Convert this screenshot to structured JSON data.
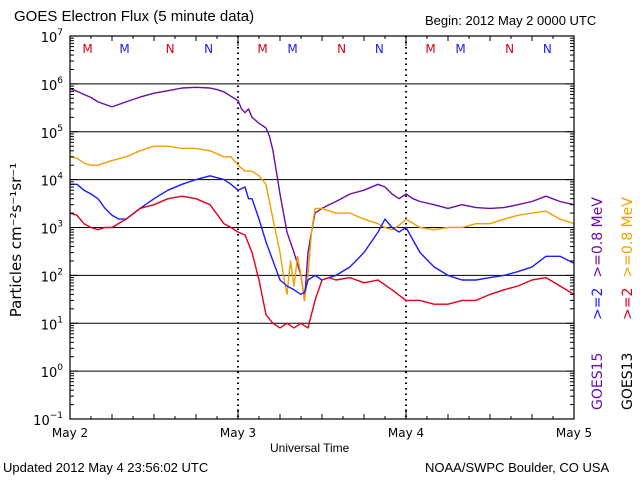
{
  "header": {
    "title": "GOES Electron Flux (5 minute data)",
    "begin": "Begin: 2012 May 2 0000 UTC"
  },
  "footer": {
    "updated": "Updated 2012 May  4 23:56:02 UTC",
    "source": "NOAA/SWPC Boulder, CO USA"
  },
  "chart_data": {
    "type": "line",
    "title": "GOES Electron Flux (5 minute data)",
    "xlabel": "Universal Time",
    "ylabel": "Particles cm⁻²s⁻¹sr⁻¹",
    "yscale": "log",
    "ylim": [
      0.1,
      10000000
    ],
    "xlim": [
      0,
      72
    ],
    "x_unit": "hours since 2012 May 2 0000 UTC",
    "x_ticks": [
      {
        "x": 0,
        "label": "May 2"
      },
      {
        "x": 24,
        "label": "May 3"
      },
      {
        "x": 48,
        "label": "May 4"
      },
      {
        "x": 72,
        "label": "May 5"
      }
    ],
    "y_ticks": [
      {
        "exp": 7,
        "label": "10",
        "sup": "7"
      },
      {
        "exp": 6,
        "label": "10",
        "sup": "6"
      },
      {
        "exp": 5,
        "label": "10",
        "sup": "5"
      },
      {
        "exp": 4,
        "label": "10",
        "sup": "4"
      },
      {
        "exp": 3,
        "label": "10",
        "sup": "3"
      },
      {
        "exp": 2,
        "label": "10",
        "sup": "2"
      },
      {
        "exp": 1,
        "label": "10",
        "sup": "1"
      },
      {
        "exp": 0,
        "label": "10",
        "sup": "0"
      },
      {
        "exp": -1,
        "label": "10",
        "sup": "−1"
      }
    ],
    "threshold": {
      "value": 1000,
      "style": "dashed"
    },
    "midnight_markers": [
      24,
      48
    ],
    "local_time_markers": [
      {
        "label": "M",
        "x": 2.5,
        "color": "#e0001a"
      },
      {
        "label": "M",
        "x": 7.8,
        "color": "#1a1aff"
      },
      {
        "label": "N",
        "x": 14.3,
        "color": "#e0001a"
      },
      {
        "label": "N",
        "x": 19.8,
        "color": "#1a1aff"
      },
      {
        "label": "M",
        "x": 27.5,
        "color": "#e0001a"
      },
      {
        "label": "M",
        "x": 31.8,
        "color": "#1a1aff"
      },
      {
        "label": "N",
        "x": 38.8,
        "color": "#e0001a"
      },
      {
        "label": "N",
        "x": 44.2,
        "color": "#1a1aff"
      },
      {
        "label": "M",
        "x": 51.5,
        "color": "#e0001a"
      },
      {
        "label": "M",
        "x": 55.8,
        "color": "#1a1aff"
      },
      {
        "label": "N",
        "x": 62.8,
        "color": "#e0001a"
      },
      {
        "label": "N",
        "x": 68.2,
        "color": "#1a1aff"
      }
    ],
    "legend": {
      "placement": "right",
      "groups": [
        {
          "satellite": "GOES15",
          "color": "#6a0da8",
          "entries": [
            {
              "label": ">=0.8  MeV",
              "color": "#6a0da8"
            },
            {
              "label": ">=2",
              "color": "#1a1aff"
            }
          ]
        },
        {
          "satellite": "GOES13",
          "color": "#e8a000",
          "entries": [
            {
              "label": ">=0.8  MeV",
              "color": "#f0a000"
            },
            {
              "label": ">=2",
              "color": "#e0001a"
            }
          ]
        }
      ],
      "satellite_labels": [
        "GOES15",
        "GOES13"
      ]
    },
    "series": [
      {
        "name": "GOES15 >=0.8 MeV",
        "color": "#6a0da8",
        "x": [
          0,
          1,
          2,
          3,
          4,
          6,
          8,
          10,
          12,
          14,
          16,
          18,
          20,
          21,
          22,
          23,
          24,
          24.5,
          25,
          25.5,
          26,
          27,
          28,
          28.5,
          29,
          30,
          31,
          32,
          33,
          33.5,
          34,
          34.5,
          35,
          36,
          37,
          38,
          40,
          42,
          44,
          45,
          46,
          47,
          48,
          49,
          50,
          52,
          54,
          56,
          58,
          60,
          62,
          64,
          66,
          68,
          70,
          72
        ],
        "y": [
          800000,
          700000,
          600000,
          520000,
          420000,
          330000,
          420000,
          530000,
          640000,
          720000,
          820000,
          850000,
          820000,
          760000,
          680000,
          550000,
          450000,
          300000,
          250000,
          300000,
          200000,
          150000,
          120000,
          80000,
          40000,
          5000,
          800,
          300,
          100,
          30,
          300,
          800,
          2000,
          2500,
          3000,
          3500,
          5000,
          6000,
          8000,
          7000,
          5000,
          4000,
          5000,
          4000,
          3500,
          3000,
          2500,
          3000,
          2600,
          2500,
          2600,
          3000,
          3500,
          4500,
          3500,
          3000
        ]
      },
      {
        "name": "GOES13 >=0.8 MeV",
        "color": "#f0a000",
        "x": [
          0,
          1,
          2,
          3,
          4,
          6,
          8,
          10,
          12,
          14,
          16,
          18,
          20,
          22,
          23,
          24,
          25,
          26,
          27,
          28,
          29,
          30,
          30.5,
          31,
          31.5,
          32,
          32.5,
          33,
          33.5,
          34,
          34.5,
          35,
          36,
          38,
          40,
          42,
          44,
          45,
          46,
          47,
          48,
          50,
          52,
          54,
          56,
          58,
          60,
          62,
          64,
          66,
          68,
          70,
          72
        ],
        "y": [
          30000,
          28000,
          22000,
          20000,
          20000,
          25000,
          30000,
          40000,
          50000,
          50000,
          45000,
          45000,
          40000,
          30000,
          30000,
          20000,
          15000,
          15000,
          12000,
          8000,
          1500,
          300,
          100,
          40,
          200,
          60,
          250,
          100,
          30,
          100,
          800,
          2500,
          2500,
          2000,
          2000,
          1500,
          1200,
          1000,
          900,
          1100,
          1500,
          1000,
          900,
          1000,
          1000,
          1200,
          1200,
          1500,
          1800,
          2000,
          2200,
          1500,
          1200
        ]
      },
      {
        "name": "GOES15 >=2 MeV",
        "color": "#1a1aff",
        "x": [
          0,
          1,
          2,
          3,
          4,
          5,
          6,
          7,
          8,
          10,
          12,
          14,
          16,
          18,
          20,
          22,
          23,
          24,
          25,
          25.5,
          26,
          27,
          28,
          29,
          30,
          31,
          32,
          33,
          33.5,
          34,
          35,
          36,
          37,
          38,
          40,
          42,
          44,
          45,
          46,
          47,
          48,
          50,
          52,
          54,
          56,
          58,
          60,
          62,
          64,
          66,
          68,
          70,
          72
        ],
        "y": [
          8000,
          8000,
          6000,
          5000,
          4000,
          2500,
          1800,
          1500,
          1500,
          2500,
          4000,
          6000,
          8000,
          10000,
          12000,
          10000,
          8000,
          6000,
          7000,
          4000,
          4000,
          1500,
          500,
          200,
          80,
          60,
          50,
          40,
          45,
          80,
          100,
          80,
          90,
          100,
          150,
          300,
          800,
          1500,
          1000,
          800,
          1000,
          300,
          150,
          100,
          80,
          80,
          90,
          100,
          120,
          150,
          250,
          250,
          180
        ]
      },
      {
        "name": "GOES13 >=2 MeV",
        "color": "#e0001a",
        "x": [
          0,
          1,
          2,
          3,
          4,
          5,
          6,
          8,
          10,
          12,
          14,
          16,
          18,
          20,
          22,
          23,
          24,
          25,
          26,
          27,
          28,
          29,
          30,
          31,
          32,
          33,
          34,
          35,
          36,
          37,
          38,
          40,
          42,
          44,
          46,
          48,
          50,
          52,
          54,
          56,
          58,
          60,
          62,
          64,
          66,
          68,
          70,
          72
        ],
        "y": [
          2000,
          1800,
          1200,
          1000,
          900,
          1000,
          1000,
          1500,
          2500,
          3000,
          4000,
          4500,
          4000,
          3000,
          1200,
          1000,
          800,
          700,
          300,
          80,
          15,
          10,
          8,
          10,
          8,
          10,
          8,
          30,
          80,
          90,
          80,
          90,
          70,
          80,
          50,
          30,
          30,
          25,
          25,
          30,
          30,
          40,
          50,
          60,
          80,
          90,
          60,
          40
        ]
      }
    ]
  }
}
